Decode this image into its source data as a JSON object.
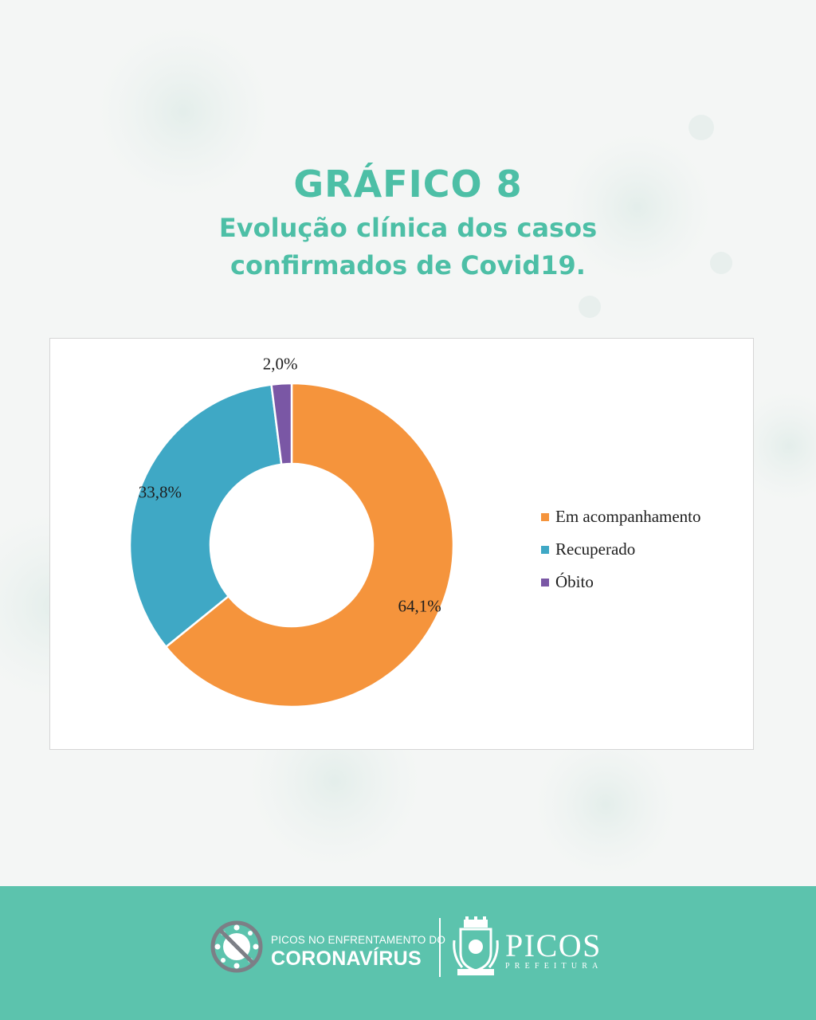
{
  "header": {
    "title": "GRÁFICO 8",
    "subtitle_line1": "Evolução clínica dos casos",
    "subtitle_line2": "confirmados de Covid19."
  },
  "colors": {
    "accent": "#4dbfa6",
    "footer": "#5cc3ad",
    "series": [
      "#f5943c",
      "#3fa8c5",
      "#7a57a5"
    ]
  },
  "chart_data": {
    "type": "pie",
    "donut": true,
    "title": "",
    "categories": [
      "Em acompanhamento",
      "Recuperado",
      "Óbito"
    ],
    "values": [
      64.1,
      33.8,
      2.0
    ],
    "data_labels": [
      "64,1%",
      "33,8%",
      "2,0%"
    ],
    "colors": [
      "#f5943c",
      "#3fa8c5",
      "#7a57a5"
    ],
    "legend_position": "right"
  },
  "legend": {
    "items": [
      {
        "label": "Em acompanhamento",
        "color": "#f5943c"
      },
      {
        "label": "Recuperado",
        "color": "#3fa8c5"
      },
      {
        "label": "Óbito",
        "color": "#7a57a5"
      }
    ]
  },
  "footer": {
    "campaign_top": "PICOS NO ENFRENTAMENTO DO",
    "campaign_main": "CORONAVÍRUS",
    "city_name": "PICOS",
    "city_sub": "PREFEITURA",
    "logo_icon": "virus-prohibited-icon",
    "crest_icon": "city-crest-icon"
  }
}
